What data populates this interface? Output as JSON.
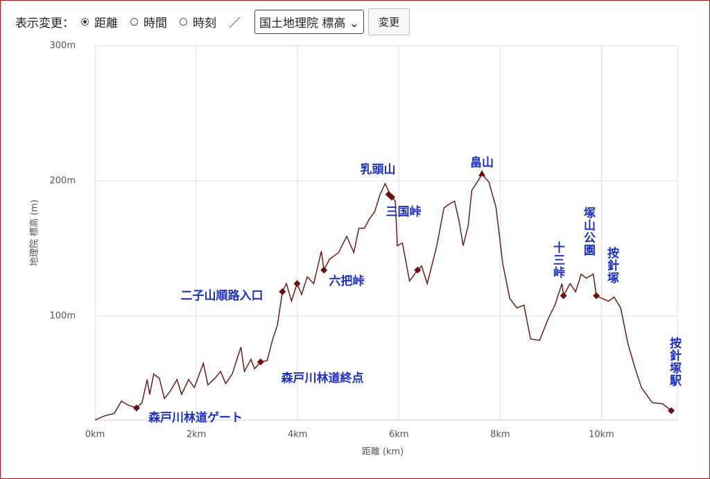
{
  "controls": {
    "caption": "表示変更：",
    "radios": [
      {
        "label": "距離",
        "checked": true
      },
      {
        "label": "時間",
        "checked": false
      },
      {
        "label": "時刻",
        "checked": false
      }
    ],
    "separator": "／",
    "select": "国土地理院 標高",
    "button": "変更"
  },
  "chart_data": {
    "type": "line",
    "xlabel": "距離 (km)",
    "ylabel": "地理院 標高 (m)",
    "xlim": [
      0,
      11.5
    ],
    "ylim": [
      23,
      300
    ],
    "xticks": [
      {
        "value": 0,
        "label": "0km"
      },
      {
        "value": 2,
        "label": "2km"
      },
      {
        "value": 4,
        "label": "4km"
      },
      {
        "value": 6,
        "label": "6km"
      },
      {
        "value": 8,
        "label": "8km"
      },
      {
        "value": 10,
        "label": "10km"
      }
    ],
    "yticks": [
      {
        "value": 100,
        "label": "100m"
      },
      {
        "value": 200,
        "label": "200m"
      },
      {
        "value": 300,
        "label": "300m"
      }
    ],
    "grid": true,
    "series": [
      {
        "color": "#6b1a1a",
        "x": [
          0,
          0.18,
          0.38,
          0.52,
          0.66,
          0.82,
          0.93,
          1.03,
          1.08,
          1.16,
          1.27,
          1.37,
          1.48,
          1.62,
          1.71,
          1.85,
          1.96,
          2.14,
          2.23,
          2.37,
          2.48,
          2.58,
          2.71,
          2.88,
          2.95,
          3.08,
          3.15,
          3.27,
          3.4,
          3.51,
          3.6,
          3.7,
          3.78,
          3.88,
          3.99,
          4.08,
          4.19,
          4.32,
          4.47,
          4.52,
          4.63,
          4.81,
          4.97,
          5.11,
          5.21,
          5.32,
          5.42,
          5.52,
          5.63,
          5.73,
          5.84,
          5.93,
          5.97,
          6.07,
          6.21,
          6.37,
          6.45,
          6.56,
          6.75,
          6.89,
          7.0,
          7.1,
          7.19,
          7.27,
          7.37,
          7.44,
          7.58,
          7.64,
          7.78,
          7.92,
          8.05,
          8.19,
          8.33,
          8.47,
          8.6,
          8.78,
          8.95,
          9.08,
          9.22,
          9.25,
          9.38,
          9.49,
          9.6,
          9.7,
          9.84,
          9.9,
          10.01,
          10.14,
          10.25,
          10.38,
          10.52,
          10.66,
          10.79,
          11.0,
          11.21,
          11.38
        ],
        "values": [
          23,
          26,
          28,
          37,
          34,
          32,
          36,
          53,
          42,
          57,
          54,
          39,
          44,
          53,
          42,
          53,
          47,
          65,
          49,
          54,
          59,
          50,
          57,
          77,
          59,
          68,
          61,
          66,
          67,
          83,
          93,
          118,
          124,
          111,
          124,
          116,
          129,
          124,
          148,
          134,
          142,
          147,
          159,
          147,
          165,
          165,
          172,
          177,
          190,
          198,
          189,
          185,
          152,
          154,
          126,
          134,
          137,
          124,
          152,
          180,
          183,
          185,
          170,
          152,
          167,
          193,
          201,
          205,
          199,
          180,
          139,
          113,
          106,
          108,
          83,
          82,
          98,
          108,
          124,
          115,
          124,
          118,
          131,
          128,
          131,
          115,
          113,
          111,
          114,
          106,
          80,
          62,
          47,
          36,
          35,
          30
        ]
      }
    ],
    "marker_color": "#6b0f0f",
    "label_color": "#1a2fd0",
    "markers": [
      {
        "x": 0.82,
        "y": 32,
        "labels": [
          "森戸川林道ゲート"
        ]
      },
      {
        "x": 3.27,
        "y": 66,
        "labels": [
          "森戸川林道終点"
        ]
      },
      {
        "x": 3.7,
        "y": 118,
        "labels": [
          "二子山順路入口"
        ]
      },
      {
        "x": 3.99,
        "y": 124
      },
      {
        "x": 4.52,
        "y": 134,
        "labels": [
          "六把峠"
        ]
      },
      {
        "x": 5.8,
        "y": 190,
        "labels": [
          "乳頭山"
        ]
      },
      {
        "x": 5.86,
        "y": 188,
        "labels": [
          "三国峠"
        ]
      },
      {
        "x": 6.37,
        "y": 134
      },
      {
        "x": 7.64,
        "y": 205,
        "shape": "triangle",
        "labels": [
          "畠山"
        ]
      },
      {
        "x": 9.25,
        "y": 115,
        "labels": [
          "十三峠"
        ]
      },
      {
        "x": 9.9,
        "y": 115,
        "labels": [
          "塚山公園",
          "按針塚"
        ]
      },
      {
        "x": 11.38,
        "y": 30,
        "labels": [
          "按針塚駅"
        ]
      }
    ]
  }
}
